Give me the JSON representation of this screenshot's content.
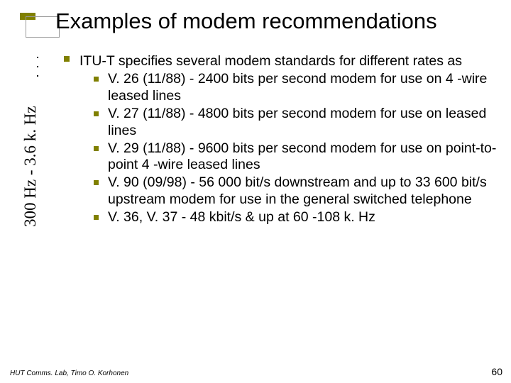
{
  "title": "Examples of modem recommendations",
  "decor": {
    "small_fill": "#808000",
    "box_border": "#999999"
  },
  "bullets": {
    "top_fill": "#808000",
    "sub_fill": "#808000"
  },
  "lead_text": "ITU-T specifies several modem standards for different rates as",
  "items": [
    "V. 26 (11/88) - 2400 bits per second modem for use on 4 -wire leased lines",
    "V. 27 (11/88) - 4800 bits per second modem for use on leased lines",
    "V. 29 (11/88) - 9600 bits per second modem for use on point-to-point 4 -wire leased lines",
    "V. 90 (09/98) - 56 000 bit/s downstream and up to 33 600 bit/s upstream modem for use in the general switched telephone",
    "V. 36, V. 37 - 48 kbit/s & up at 60 -108 k. Hz"
  ],
  "side_label": "300 Hz - 3.6 k. Hz",
  "footer": "HUT Comms. Lab, Timo O. Korhonen",
  "page_number": "60",
  "typography": {
    "title_fontsize": 31,
    "body_fontsize": 19.5,
    "side_fontsize": 23,
    "footer_fontsize": 10,
    "pagenum_fontsize": 14
  },
  "colors": {
    "background": "#ffffff",
    "text": "#000000"
  }
}
